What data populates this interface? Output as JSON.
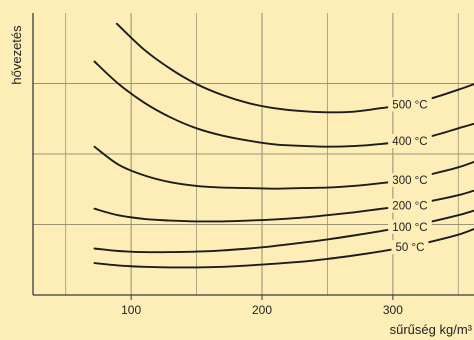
{
  "colors": {
    "background": "#fdeeb8",
    "grid": "#9c9478",
    "axis": "#3a3a3a",
    "curve": "#1c1c1c",
    "text": "#222222"
  },
  "chart_data": {
    "type": "line",
    "xlabel": "sűrűség kg/m³",
    "ylabel": "hővezetés",
    "xlim": [
      25,
      362
    ],
    "ylim": [
      0,
      100
    ],
    "x_ticks": [
      100,
      200,
      300
    ],
    "x_gridlines": [
      50,
      100,
      150,
      200,
      250,
      300,
      350
    ],
    "y_gridlines": [
      25,
      50,
      75
    ],
    "y_tick_labels": false,
    "grid": true,
    "series": [
      {
        "name": "500 °C",
        "label_at": 310,
        "x": [
          89,
          110,
          130,
          150,
          170,
          190,
          210,
          230,
          250,
          270,
          290,
          310,
          330,
          350,
          362
        ],
        "y": [
          96.2,
          87.0,
          80.2,
          74.8,
          70.9,
          68.0,
          66.2,
          65.2,
          64.8,
          65.0,
          66.2,
          67.6,
          69.8,
          72.8,
          74.8
        ]
      },
      {
        "name": "400 °C",
        "label_at": 310,
        "x": [
          72,
          90,
          110,
          130,
          150,
          170,
          190,
          210,
          230,
          250,
          270,
          290,
          310,
          330,
          350,
          362
        ],
        "y": [
          82.8,
          75.0,
          68.2,
          63.0,
          59.1,
          56.5,
          54.7,
          53.4,
          52.9,
          52.6,
          52.8,
          53.5,
          54.6,
          56.4,
          59.1,
          60.7
        ]
      },
      {
        "name": "300 °C",
        "label_at": 310,
        "x": [
          72,
          90,
          110,
          130,
          150,
          170,
          190,
          210,
          230,
          250,
          270,
          290,
          310,
          330,
          350,
          362
        ],
        "y": [
          52.6,
          46.3,
          42.4,
          40.0,
          38.7,
          38.1,
          37.9,
          37.7,
          37.9,
          38.1,
          38.7,
          39.6,
          40.8,
          42.9,
          45.3,
          47.2
        ]
      },
      {
        "name": "200 °C",
        "label_at": 310,
        "x": [
          72,
          90,
          110,
          130,
          150,
          170,
          190,
          210,
          230,
          250,
          270,
          290,
          310,
          330,
          350,
          362
        ],
        "y": [
          30.6,
          28.3,
          27.0,
          26.4,
          26.1,
          26.1,
          26.4,
          26.8,
          27.4,
          28.3,
          29.3,
          30.5,
          31.7,
          33.4,
          35.4,
          37.0
        ]
      },
      {
        "name": "100 °C",
        "label_at": 310,
        "x": [
          72,
          90,
          110,
          130,
          150,
          170,
          190,
          210,
          230,
          250,
          270,
          290,
          310,
          330,
          350,
          362
        ],
        "y": [
          16.5,
          15.6,
          15.2,
          15.2,
          15.4,
          15.8,
          16.5,
          17.4,
          18.5,
          19.7,
          21.1,
          22.6,
          24.2,
          26.1,
          28.3,
          29.9
        ]
      },
      {
        "name": "50 °C",
        "label_at": 310,
        "x": [
          72,
          90,
          110,
          130,
          150,
          170,
          190,
          210,
          230,
          250,
          270,
          290,
          310,
          330,
          350,
          362
        ],
        "y": [
          11.3,
          10.5,
          10.0,
          9.8,
          9.8,
          10.0,
          10.5,
          11.1,
          11.8,
          12.8,
          14.0,
          15.4,
          17.0,
          19.0,
          21.4,
          23.4
        ]
      }
    ]
  }
}
